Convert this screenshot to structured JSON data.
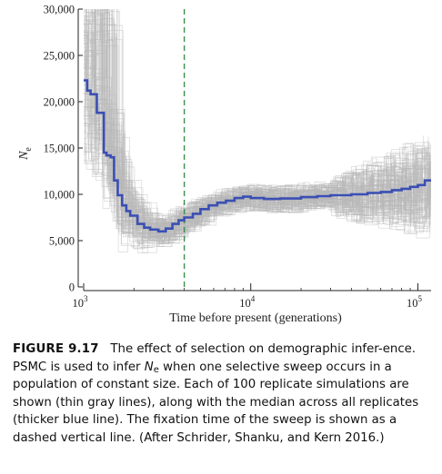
{
  "chart_data": {
    "type": "line",
    "x_scale": "log",
    "xlim": [
      1000,
      120000
    ],
    "ylim": [
      0,
      30000
    ],
    "xlabel": "Time before present (generations)",
    "ylabel": "N",
    "ylabel_sub": "e",
    "y_ticks": [
      0,
      5000,
      10000,
      15000,
      20000,
      25000,
      30000
    ],
    "y_tick_labels": [
      "0",
      "5,000",
      "10,000",
      "15,000",
      "20,000",
      "25,000",
      "30,000"
    ],
    "x_ticks": [
      1000,
      10000,
      100000
    ],
    "x_tick_labels": [
      {
        "base": "10",
        "exp": "3"
      },
      {
        "base": "10",
        "exp": "4"
      },
      {
        "base": "10",
        "exp": "5"
      }
    ],
    "replicate_count": 100,
    "sweep_fixation_time": 4000,
    "median": {
      "color": "#3a4fb4",
      "x": [
        1000,
        1050,
        1100,
        1200,
        1320,
        1370,
        1450,
        1520,
        1600,
        1700,
        1800,
        1900,
        2100,
        2300,
        2500,
        2800,
        3100,
        3400,
        3700,
        4000,
        4500,
        5000,
        5600,
        6300,
        7100,
        8000,
        9000,
        10000,
        12000,
        15000,
        20000,
        25000,
        30000,
        40000,
        50000,
        60000,
        70000,
        80000,
        90000,
        100000,
        110000,
        120000
      ],
      "y": [
        22300,
        21200,
        20800,
        18800,
        14500,
        14200,
        14000,
        11500,
        9900,
        8800,
        8200,
        7700,
        6800,
        6400,
        6200,
        6000,
        6300,
        6800,
        7200,
        7500,
        7900,
        8400,
        8800,
        9100,
        9300,
        9600,
        9750,
        9600,
        9500,
        9550,
        9700,
        9800,
        9900,
        10000,
        10150,
        10250,
        10450,
        10600,
        10800,
        11000,
        11500,
        11400
      ]
    },
    "replicate_color": "#b8b8b8",
    "sweep_line_color": "#3b8f4a"
  },
  "caption": {
    "label": "FIGURE 9.17",
    "part1": "The effect of selection on demographic infer-ence. PSMC is used to infer ",
    "symbol": "N",
    "symbol_sub": "e",
    "part2": " when one selective sweep occurs in a population of constant size. Each of 100 replicate simulations are shown (thin gray lines), along with the median across all replicates (thicker blue line). The fixation time of the sweep is shown as a dashed vertical line. (After Schrider, Shanku, and Kern 2016.)"
  }
}
